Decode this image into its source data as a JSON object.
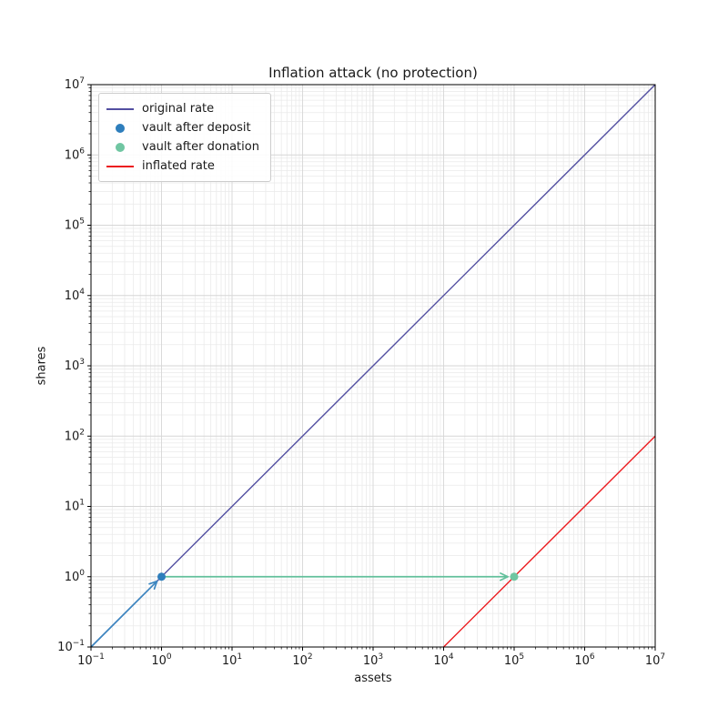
{
  "chart_data": {
    "type": "line",
    "title": "Inflation attack (no protection)",
    "xlabel": "assets",
    "ylabel": "shares",
    "xscale": "log",
    "yscale": "log",
    "xlim": [
      0.1,
      10000000
    ],
    "ylim": [
      0.1,
      10000000
    ],
    "grid": true,
    "tick_exponents": {
      "x": [
        -1,
        0,
        1,
        2,
        3,
        4,
        5,
        6,
        7
      ],
      "y": [
        -1,
        0,
        1,
        2,
        3,
        4,
        5,
        6,
        7
      ]
    },
    "series": [
      {
        "name": "original rate",
        "kind": "line",
        "color": "#524fa1",
        "width": 1.4,
        "points": [
          [
            0.1,
            0.1
          ],
          [
            10000000,
            10000000
          ]
        ]
      },
      {
        "name": "vault after deposit",
        "kind": "scatter",
        "color": "#2e7ebc",
        "marker_radius": 4.5,
        "points": [
          [
            1,
            1
          ]
        ]
      },
      {
        "name": "vault after donation",
        "kind": "scatter",
        "color": "#70c6a2",
        "marker_radius": 4.5,
        "points": [
          [
            100000,
            1
          ]
        ]
      },
      {
        "name": "inflated rate",
        "kind": "line",
        "color": "#ec1b1f",
        "width": 1.4,
        "points": [
          [
            10000,
            0.1
          ],
          [
            10000000,
            100
          ]
        ]
      }
    ],
    "annotations": [
      {
        "name": "deposit-arrow",
        "type": "arrow",
        "color": "#3d86c0",
        "width": 1.7,
        "from": [
          0.1,
          0.1
        ],
        "to": [
          1,
          1
        ]
      },
      {
        "name": "donation-arrow",
        "type": "arrow",
        "color": "#62c09b",
        "width": 1.7,
        "from": [
          1,
          1
        ],
        "to": [
          100000,
          1
        ]
      }
    ],
    "legend": {
      "position": "upper-left",
      "items": [
        {
          "label": "original rate",
          "swatch": "line",
          "color": "#524fa1"
        },
        {
          "label": "vault after deposit",
          "swatch": "dot",
          "color": "#2e7ebc"
        },
        {
          "label": "vault after donation",
          "swatch": "dot",
          "color": "#70c6a2"
        },
        {
          "label": "inflated rate",
          "swatch": "line",
          "color": "#ec1b1f"
        }
      ]
    }
  },
  "style": {
    "background": "#ffffff",
    "grid_major": "#d6d6d6",
    "grid_minor": "#eaeaea",
    "spine": "#000000",
    "text": "#1a1a1a"
  }
}
